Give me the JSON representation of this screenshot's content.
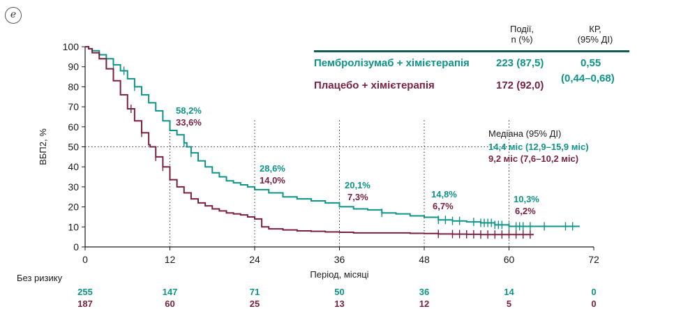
{
  "panel_label": "e",
  "legend": {
    "header_events": "Події,\nn (%)",
    "header_hr": "КР,\n(95% ДІ)",
    "rows": [
      {
        "name": "Пембролізумаб + хімієтерапія",
        "events": "223 (87,5)",
        "color": "#0d9488"
      },
      {
        "name": "Плацебо + хімієтерапія",
        "events": "172 (92,0)",
        "color": "#7a1f3d"
      }
    ],
    "hr_value": "0,55",
    "hr_ci": "(0,44–0,68)"
  },
  "median": {
    "title": "Медіана (95% ДІ)",
    "teal": "14,4 міс (12,9–15,9 міс)",
    "maroon": "9,2 міс (7,6–10,2 міс)"
  },
  "annotations": [
    {
      "month": 12,
      "teal": "58,2%",
      "maroon": "33,6%"
    },
    {
      "month": 24,
      "teal": "28,6%",
      "maroon": "14,0%"
    },
    {
      "month": 36,
      "teal": "20,1%",
      "maroon": "7,3%"
    },
    {
      "month": 48,
      "teal": "14,8%",
      "maroon": "6,7%"
    },
    {
      "month": 60,
      "teal": "10,3%",
      "maroon": "6,2%"
    }
  ],
  "risk_table": {
    "title": "Без ризику",
    "months": [
      0,
      12,
      24,
      36,
      48,
      60,
      72
    ],
    "teal": [
      "255",
      "147",
      "71",
      "50",
      "36",
      "14",
      "0"
    ],
    "maroon": [
      "187",
      "60",
      "25",
      "13",
      "12",
      "5",
      "0"
    ]
  },
  "chart_data": {
    "type": "line",
    "xlabel": "Період, місяці",
    "ylabel": "ВБП2, %",
    "xlim": [
      0,
      72
    ],
    "ylim": [
      0,
      100
    ],
    "xticks": [
      0,
      12,
      24,
      36,
      48,
      60,
      72
    ],
    "yticks": [
      0,
      10,
      20,
      30,
      40,
      50,
      60,
      70,
      80,
      90,
      100
    ],
    "reference_line_y": 50,
    "reference_lines_x": [
      12,
      24,
      36,
      48,
      60
    ],
    "series": [
      {
        "name": "Пембролізумаб + хімієтерапія",
        "color": "#0d9488",
        "x": [
          0,
          0.5,
          1,
          2,
          3,
          4,
          5,
          6,
          7,
          8,
          9,
          10,
          11,
          12,
          13,
          14,
          14.4,
          15,
          16,
          17,
          18,
          19,
          20,
          21,
          22,
          23,
          24,
          26,
          28,
          30,
          32,
          34,
          36,
          38,
          40,
          42,
          44,
          46,
          48,
          50,
          52,
          54,
          56,
          58,
          60,
          62,
          64,
          66,
          68,
          70
        ],
        "y": [
          100,
          99,
          98,
          96,
          94,
          91,
          88,
          84,
          80,
          76,
          72,
          68,
          63,
          58.2,
          56,
          52,
          50,
          47,
          43,
          40,
          37,
          35,
          33,
          32,
          31,
          30,
          28.6,
          27,
          25,
          24,
          23,
          22,
          20.1,
          19,
          18.5,
          17,
          16.5,
          15.5,
          14.8,
          13.5,
          13,
          12.5,
          12,
          11,
          10.3,
          10.3,
          10.3,
          10.3,
          10.3,
          10.3
        ],
        "censor_x": [
          4,
          5.5,
          7,
          14,
          15,
          42,
          50,
          51,
          52,
          53,
          55,
          56,
          56.5,
          57,
          57.5,
          58,
          58.5,
          59,
          60,
          61,
          61.5,
          62,
          63,
          65,
          68,
          69
        ]
      },
      {
        "name": "Плацебо + хімієтерапія",
        "color": "#7a1f3d",
        "x": [
          0,
          0.5,
          1,
          2,
          3,
          4,
          5,
          6,
          7,
          8,
          9,
          9.2,
          10,
          11,
          12,
          13,
          14,
          15,
          16,
          17,
          18,
          19,
          20,
          21,
          22,
          23,
          24,
          25,
          26,
          28,
          30,
          32,
          34,
          36,
          38,
          40,
          42,
          44,
          46,
          48,
          50,
          52,
          54,
          56,
          58,
          60,
          62,
          63.5
        ],
        "y": [
          100,
          99,
          97,
          94,
          89,
          83,
          76,
          69,
          63,
          57,
          51,
          50,
          45,
          40,
          33.6,
          30,
          27,
          24,
          22,
          20.5,
          19,
          18,
          17,
          16.5,
          16,
          15,
          14,
          10,
          9,
          8.5,
          8,
          7.8,
          7.5,
          7.3,
          7,
          7,
          7,
          7,
          6.8,
          6.7,
          6.5,
          6.4,
          6.3,
          6.2,
          6.2,
          6.2,
          6.2,
          6.2
        ],
        "censor_x": [
          6.5,
          8,
          10,
          11,
          50,
          52,
          53,
          54,
          55,
          56,
          57,
          58,
          59,
          60,
          61,
          62,
          63
        ]
      }
    ]
  }
}
